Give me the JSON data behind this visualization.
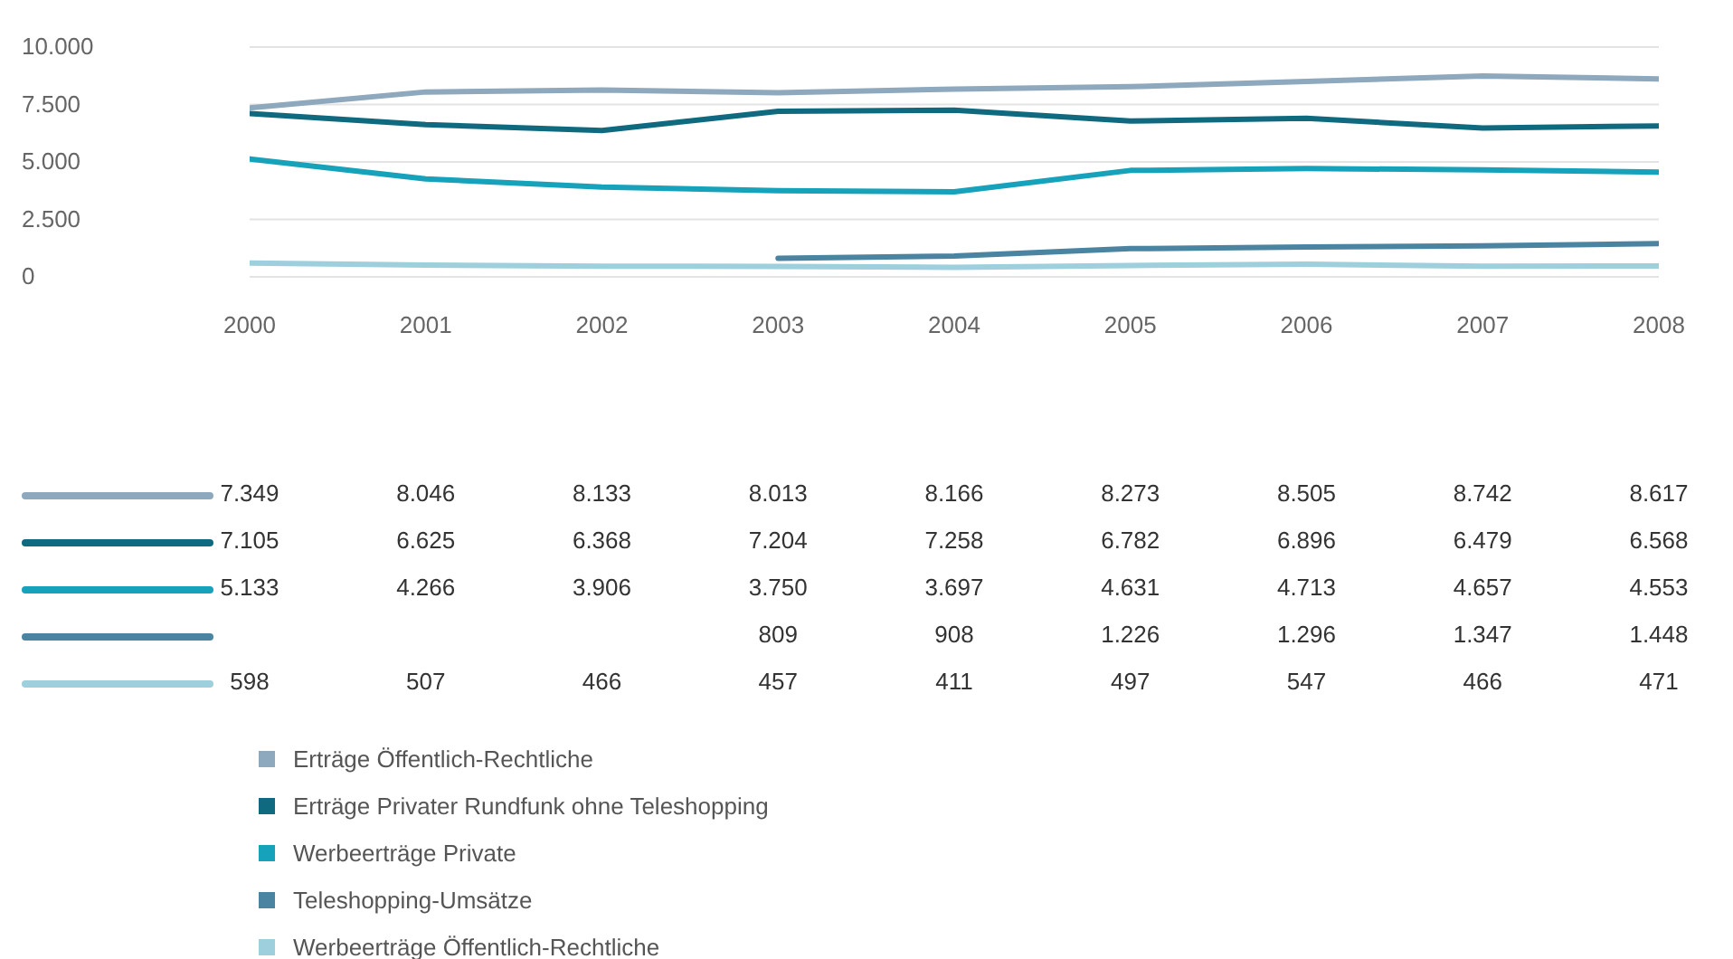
{
  "chart_data": {
    "type": "line",
    "categories": [
      "2000",
      "2001",
      "2002",
      "2003",
      "2004",
      "2005",
      "2006",
      "2007",
      "2008"
    ],
    "ylim": [
      0,
      10000
    ],
    "yticks": [
      {
        "value": 0,
        "label": "0"
      },
      {
        "value": 2500,
        "label": "2.500"
      },
      {
        "value": 5000,
        "label": "5.000"
      },
      {
        "value": 7500,
        "label": "7.500"
      },
      {
        "value": 10000,
        "label": "10.000"
      }
    ],
    "grid": "y",
    "legend": "bottom",
    "marker": "none",
    "line_style": "solid",
    "series": [
      {
        "name": "Erträge Öffentlich-Rechtliche",
        "color": "#8ea8bd",
        "values": [
          7349,
          8046,
          8133,
          8013,
          8166,
          8273,
          8505,
          8742,
          8617
        ],
        "value_labels": [
          "7.349",
          "8.046",
          "8.133",
          "8.013",
          "8.166",
          "8.273",
          "8.505",
          "8.742",
          "8.617"
        ]
      },
      {
        "name": "Erträge Privater Rundfunk ohne Teleshopping",
        "color": "#0f6a80",
        "values": [
          7105,
          6625,
          6368,
          7204,
          7258,
          6782,
          6896,
          6479,
          6568
        ],
        "value_labels": [
          "7.105",
          "6.625",
          "6.368",
          "7.204",
          "7.258",
          "6.782",
          "6.896",
          "6.479",
          "6.568"
        ]
      },
      {
        "name": "Werbeerträge Private",
        "color": "#17a2bb",
        "values": [
          5133,
          4266,
          3906,
          3750,
          3697,
          4631,
          4713,
          4657,
          4553
        ],
        "value_labels": [
          "5.133",
          "4.266",
          "3.906",
          "3.750",
          "3.697",
          "4.631",
          "4.713",
          "4.657",
          "4.553"
        ]
      },
      {
        "name": "Teleshopping-Umsätze",
        "color": "#4b84a0",
        "values": [
          null,
          null,
          null,
          809,
          908,
          1226,
          1296,
          1347,
          1448
        ],
        "value_labels": [
          null,
          null,
          null,
          "809",
          "908",
          "1.226",
          "1.296",
          "1.347",
          "1.448"
        ]
      },
      {
        "name": "Werbeerträge Öffentlich-Rechtliche",
        "color": "#9dcfdc",
        "values": [
          598,
          507,
          466,
          457,
          411,
          497,
          547,
          466,
          471
        ],
        "value_labels": [
          "598",
          "507",
          "466",
          "457",
          "411",
          "497",
          "547",
          "466",
          "471"
        ]
      }
    ]
  }
}
